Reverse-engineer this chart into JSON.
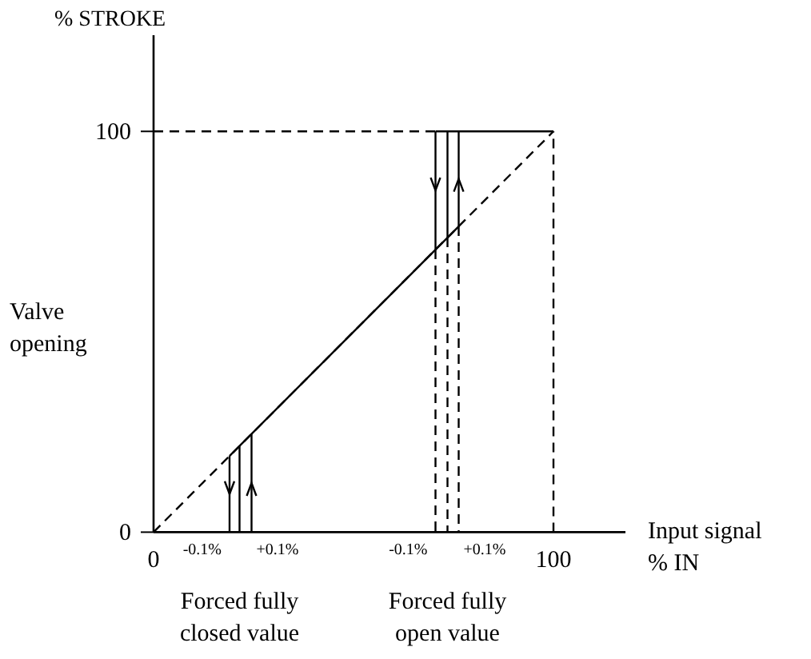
{
  "chart_data": {
    "type": "line",
    "ylabel": "% STROKE",
    "xlabel": "Input signal % IN",
    "xlim": [
      0,
      118
    ],
    "ylim": [
      0,
      124
    ],
    "xticks": [
      0,
      100
    ],
    "yticks": [
      0,
      100
    ],
    "grid": false,
    "marker": "none",
    "annotations": [
      "Valve opening",
      "-0.1%",
      "+0.1%",
      "-0.1%",
      "+0.1%",
      "Forced fully closed value",
      "Forced fully open value"
    ],
    "series": [
      {
        "color": "#000000",
        "line_style": "dashed",
        "x": [
          0,
          100
        ],
        "values": [
          0,
          100
        ]
      },
      {
        "color": "#000000",
        "line_style": "solid",
        "x": [
          19,
          76.3
        ],
        "values": [
          19,
          76.3
        ]
      },
      {
        "color": "#000000",
        "line_style": "solid",
        "x": [
          70.5,
          100
        ],
        "values": [
          100,
          100
        ]
      },
      {
        "color": "#000000",
        "line_style": "dashed",
        "x": [
          0,
          70.5
        ],
        "values": [
          100,
          100
        ]
      },
      {
        "color": "#000000",
        "line_style": "dashed",
        "x": [
          100,
          100
        ],
        "values": [
          0,
          100
        ]
      },
      {
        "color": "#000000",
        "line_style": "solid",
        "x": [
          19,
          19
        ],
        "values": [
          19,
          0
        ]
      },
      {
        "color": "#000000",
        "line_style": "solid",
        "x": [
          21.5,
          21.5
        ],
        "values": [
          0,
          21.5
        ]
      },
      {
        "color": "#000000",
        "line_style": "solid",
        "x": [
          24.5,
          24.5
        ],
        "values": [
          0,
          24.5
        ]
      },
      {
        "color": "#000000",
        "line_style": "solid",
        "x": [
          70.5,
          70.5
        ],
        "values": [
          100,
          70.5
        ]
      },
      {
        "color": "#000000",
        "line_style": "solid",
        "x": [
          73.5,
          73.5
        ],
        "values": [
          100,
          73.5
        ]
      },
      {
        "color": "#000000",
        "line_style": "solid",
        "x": [
          76.3,
          76.3
        ],
        "values": [
          76.3,
          100
        ]
      },
      {
        "color": "#000000",
        "line_style": "dashed",
        "x": [
          70.5,
          70.5
        ],
        "values": [
          70.5,
          0
        ]
      },
      {
        "color": "#000000",
        "line_style": "dashed",
        "x": [
          73.5,
          73.5
        ],
        "values": [
          73.5,
          0
        ]
      },
      {
        "color": "#000000",
        "line_style": "dashed",
        "x": [
          76.3,
          76.3
        ],
        "values": [
          76.3,
          0
        ]
      }
    ]
  }
}
